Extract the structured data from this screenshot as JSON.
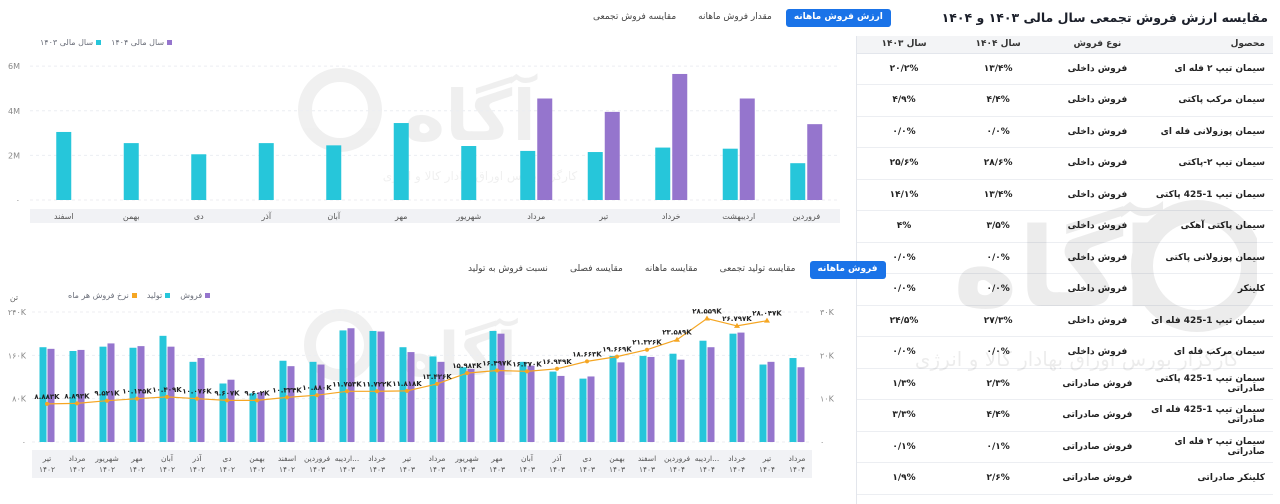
{
  "right_panel": {
    "title": "مقایسه ارزش فروش تجمعی سال مالی ۱۴۰۳ و ۱۴۰۴",
    "icon": "spreadsheet-icon",
    "columns": [
      "محصول",
      "نوع فروش",
      "سال ۱۴۰۴",
      "سال ۱۴۰۳"
    ],
    "rows": [
      [
        "سیمان تیپ ۲ فله ای",
        "فروش داخلی",
        "۱۳/۴%",
        "۲۰/۲%"
      ],
      [
        "سیمان مرکب پاکتی",
        "فروش داخلی",
        "۴/۴%",
        "۴/۹%"
      ],
      [
        "سیمان پوزولانی فله ای",
        "فروش داخلی",
        "۰/۰%",
        "۰/۰%"
      ],
      [
        "سیمان تیپ ۲-پاکتی",
        "فروش داخلی",
        "۲۸/۶%",
        "۲۵/۶%"
      ],
      [
        "سیمان تیپ 1-425 پاکتی",
        "فروش داخلی",
        "۱۳/۴%",
        "۱۴/۱%"
      ],
      [
        "سیمان پاکتی آهکی",
        "فروش داخلی",
        "۳/۵%",
        "۴%"
      ],
      [
        "سیمان پوزولانی پاکتی",
        "فروش داخلی",
        "۰/۰%",
        "۰/۰%"
      ],
      [
        "کلینکر",
        "فروش داخلی",
        "۰/۰%",
        "۰/۰%"
      ],
      [
        "سیمان تیپ 1-425 فله ای",
        "فروش داخلی",
        "۲۷/۳%",
        "۲۴/۵%"
      ],
      [
        "سیمان مرکب فله ای",
        "فروش داخلی",
        "۰/۰%",
        "۰/۰%"
      ],
      [
        "سیمان تیپ 1-425 پاکتی صادراتی",
        "فروش صادراتی",
        "۲/۳%",
        "۱/۳%"
      ],
      [
        "سیمان تیپ 1-425 فله ای صادراتی",
        "فروش صادراتی",
        "۴/۴%",
        "۳/۳%"
      ],
      [
        "سیمان تیپ ۲ فله ای صادراتی",
        "فروش صادراتی",
        "۰/۱%",
        "۰/۱%"
      ],
      [
        "کلینکر صادراتی",
        "فروش صادراتی",
        "۲/۶%",
        "۱/۹%"
      ]
    ]
  },
  "top_tabs": [
    "ارزش فروش ماهانه",
    "مقدار فروش ماهانه",
    "مقایسه فروش تجمعی"
  ],
  "bottom_tabs": [
    "فروش ماهانه",
    "مقایسه تولید تجمعی",
    "مقایسه ماهانه",
    "مقایسه فصلی",
    "نسبت فروش به تولید"
  ],
  "colors": {
    "teal": "#26c6da",
    "purple": "#9575cd",
    "orange": "#f5a623",
    "accent": "#1a73e8"
  },
  "chart_data": [
    {
      "type": "bar",
      "categories": [
        "فروردین",
        "اردیبهشت",
        "خرداد",
        "تیر",
        "مرداد",
        "شهریور",
        "مهر",
        "آبان",
        "آذر",
        "دی",
        "بهمن",
        "اسفند"
      ],
      "series": [
        {
          "name": "سال مالی ۱۴۰۳",
          "values": [
            1.65,
            2.3,
            2.35,
            2.15,
            2.2,
            2.42,
            3.45,
            2.45,
            2.55,
            2.05,
            2.55,
            3.05
          ]
        },
        {
          "name": "سال مالی ۱۴۰۴",
          "values": [
            3.4,
            4.55,
            5.65,
            3.95,
            4.55,
            null,
            null,
            null,
            null,
            null,
            null,
            null
          ]
        }
      ],
      "yticks": [
        "۰",
        "2M",
        "4M",
        "6M"
      ],
      "ylim": [
        0,
        6.5
      ]
    },
    {
      "type": "bar",
      "categories": [
        "تیر ۱۴۰۲",
        "مرداد ۱۴۰۲",
        "شهریور ۱۴۰۲",
        "مهر ۱۴۰۲",
        "آبان ۱۴۰۲",
        "آذر ۱۴۰۲",
        "دی ۱۴۰۲",
        "بهمن ۱۴۰۲",
        "اسفند ۱۴۰۲",
        "فروردین ۱۴۰۳",
        "اردیبه... ۱۴۰۳",
        "خرداد ۱۴۰۳",
        "تیر ۱۴۰۳",
        "مرداد ۱۴۰۳",
        "شهریور ۱۴۰۳",
        "مهر ۱۴۰۳",
        "آبان ۱۴۰۳",
        "آذر ۱۴۰۳",
        "دی ۱۴۰۳",
        "بهمن ۱۴۰۳",
        "اسفند ۱۴۰۳",
        "فروردین ۱۴۰۴",
        "اردیبه... ۱۴۰۴",
        "خرداد ۱۴۰۴",
        "تیر ۱۴۰۴",
        "مرداد ۱۴۰۴"
      ],
      "series": [
        {
          "name": "فروش",
          "values": [
            172,
            170,
            182,
            177,
            176,
            155,
            115,
            92,
            140,
            143,
            210,
            204,
            166,
            148,
            135,
            200,
            141,
            122,
            121,
            147,
            157,
            152,
            175,
            202,
            148,
            138
          ]
        },
        {
          "name": "تولید",
          "values": [
            175,
            168,
            176,
            174,
            196,
            148,
            108,
            90,
            150,
            148,
            206,
            205,
            175,
            158,
            138,
            205,
            148,
            130,
            117,
            159,
            159,
            163,
            187,
            200,
            143,
            155
          ]
        },
        {
          "name": "نرخ فروش هر ماه",
          "values": [
            8.8,
            8.9,
            9.52,
            10.0,
            10.4,
            10.0,
            9.6,
            9.6,
            10.3,
            10.8,
            11.7,
            11.7,
            11.8,
            13.4,
            15.9,
            16.5,
            16.3,
            16.9,
            18.6,
            19.7,
            21.3,
            23.6,
            28.5,
            26.8,
            28.0,
            null
          ],
          "labels": [
            "۸.۸۸۳K",
            "۸.۸۹۳K",
            "۹.۵۲۱K",
            "۱۰.۱۴۵K",
            "۱۰.۴۰۹K",
            "۱۰.۰۷۶K",
            "۹.۶۰۷K",
            "۹.۶۰۲K",
            "۱۰.۳۳۴K",
            "۱۰.۸۸۰K",
            "۱۱.۷۵۳K",
            "۱۱.۷۲۲K",
            "۱۱.۸۱۸K",
            "۱۳.۴۲۶K",
            "۱۵.۹۸۴K",
            "۱۶.۴۹۷K",
            "۱۶.۳۷۰K",
            "۱۶.۹۴۹K",
            "۱۸.۶۶۳K",
            "۱۹.۶۶۹K",
            "۲۱.۳۲۶K",
            "۲۳.۵۸۹K",
            "۲۸.۵۵۹K",
            "۲۶.۷۹۷K",
            "۲۸.۰۴۷K",
            ""
          ]
        }
      ],
      "yticks_left": [
        "۰",
        "۸۰K",
        "۱۶۰K",
        "۲۴۰K"
      ],
      "yticks_right": [
        "۰",
        "۱۰K",
        "۲۰K",
        "۳۰K"
      ],
      "ylabel_left": "تن",
      "ylim_left": [
        0,
        240
      ],
      "ylim_right": [
        0,
        30
      ]
    }
  ],
  "watermark": {
    "text": "آگاه",
    "subtitle": "کارگزار بورس اوراق بهادار کالا و انرژی"
  }
}
